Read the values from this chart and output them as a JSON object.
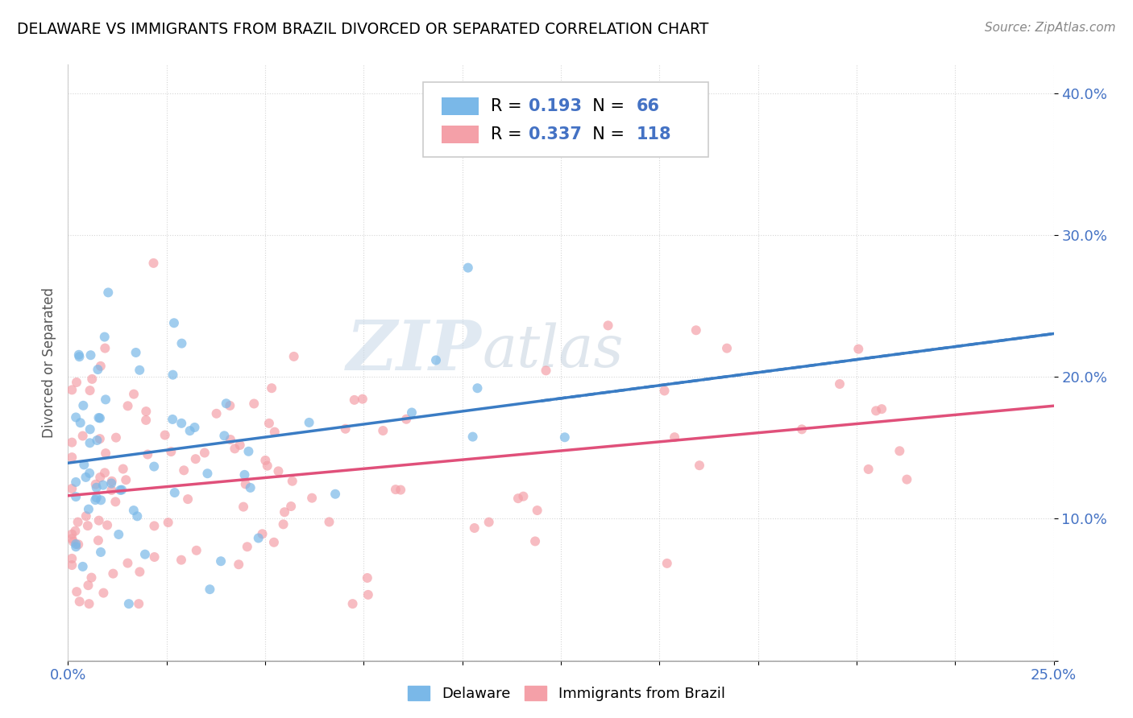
{
  "title": "DELAWARE VS IMMIGRANTS FROM BRAZIL DIVORCED OR SEPARATED CORRELATION CHART",
  "source": "Source: ZipAtlas.com",
  "ylabel": "Divorced or Separated",
  "watermark_zip": "ZIP",
  "watermark_atlas": "atlas",
  "xmin": 0.0,
  "xmax": 0.25,
  "ymin": 0.0,
  "ymax": 0.42,
  "r_delaware": 0.193,
  "n_delaware": 66,
  "r_brazil": 0.337,
  "n_brazil": 118,
  "color_delaware": "#7ab8e8",
  "color_brazil": "#f4a0a8",
  "color_trendline_delaware": "#3a7cc4",
  "color_trendline_brazil": "#e0507a",
  "legend_label1": "Delaware",
  "legend_label2": "Immigrants from Brazil",
  "legend_value_color": "#4472c4",
  "title_fontsize": 13.5,
  "source_fontsize": 11,
  "tick_fontsize": 13,
  "legend_fontsize": 15,
  "ylabel_fontsize": 12,
  "watermark_fontsize_zip": 62,
  "watermark_fontsize_atlas": 52
}
